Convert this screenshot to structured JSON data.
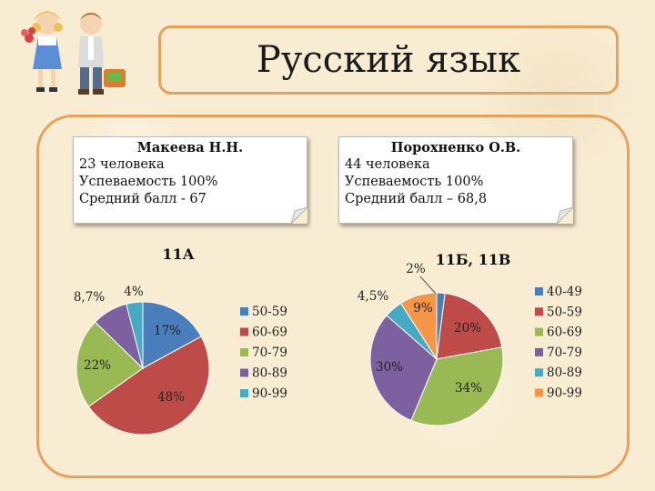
{
  "title": "Русский язык",
  "notes": [
    {
      "teacher": "Макеева Н.Н.",
      "count": "23 человека",
      "success": "Успеваемость 100%",
      "avg": "Средний балл - 67"
    },
    {
      "teacher": "Порохненко О.В.",
      "count": "44 человека",
      "success": "Успеваемость 100%",
      "avg": "Средний балл – 68,8"
    }
  ],
  "chart_data": [
    {
      "type": "pie",
      "title": "11А",
      "legend": [
        "50-59",
        "60-69",
        "70-79",
        "80-89",
        "90-99"
      ],
      "values": [
        17,
        48,
        22,
        8.7,
        4
      ],
      "labels": [
        "17%",
        "48%",
        "22%",
        "8,7%",
        "4%"
      ],
      "colors": [
        "#4a7ebb",
        "#be4b48",
        "#98b954",
        "#7d60a0",
        "#46aac5"
      ],
      "legend_position": "right"
    },
    {
      "type": "pie",
      "title": "11Б, 11В",
      "legend": [
        "40-49",
        "50-59",
        "60-69",
        "70-79",
        "80-89",
        "90-99"
      ],
      "values": [
        2,
        20,
        34,
        30,
        4.5,
        9
      ],
      "labels": [
        "2%",
        "20%",
        "34%",
        "30%",
        "4,5%",
        "9%"
      ],
      "colors": [
        "#4a7ebb",
        "#be4b48",
        "#98b954",
        "#7d60a0",
        "#46aac5",
        "#f79646"
      ],
      "legend_position": "right"
    }
  ]
}
